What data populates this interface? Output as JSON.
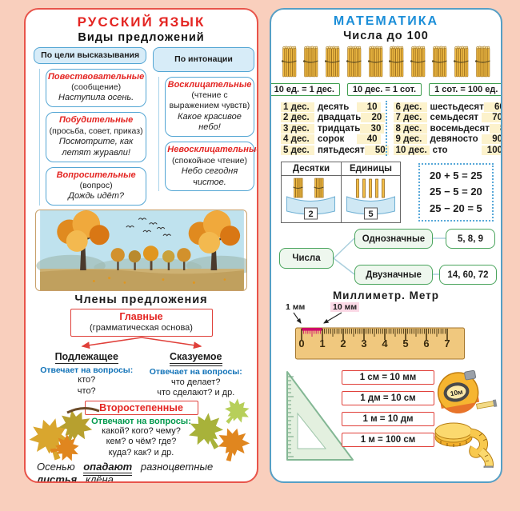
{
  "colors": {
    "background": "#f9cfbd",
    "left_border": "#e8544a",
    "right_border": "#569fc5",
    "accent_red": "#e42522",
    "accent_blue": "#1b8ed8",
    "lead_blue": "#1273b8",
    "lead_green": "#029a4d",
    "green_border": "#3f9e4f",
    "highlight_yellow": "#fcf2cc",
    "magenta": "#cf0a6a"
  },
  "left_panel": {
    "title": "РУССКИЙ  ЯЗЫК",
    "subtitle": "Виды  предложений",
    "by_purpose": {
      "header": "По  цели высказывания",
      "boxes": [
        {
          "name": "Повествовательные",
          "note": "(сообщение)",
          "example": "Наступила  осень."
        },
        {
          "name": "Побудительные",
          "note": "(просьба,  совет, приказ)",
          "example": "Посмотрите,  как летят  журавли!"
        },
        {
          "name": "Вопросительные",
          "note": "(вопрос)",
          "example": "Дождь  идёт?"
        }
      ]
    },
    "by_intonation": {
      "header": "По  интонации",
      "boxes": [
        {
          "name": "Восклицательные",
          "note": "(чтение с  выражением чувств)",
          "example": "Какое  красивое небо!"
        },
        {
          "name": "Невосклицательные",
          "note": "(спокойное  чтение)",
          "example": "Небо  сегодня чистое."
        }
      ]
    },
    "members_title": "Члены  предложения",
    "main_members": {
      "title": "Главные",
      "note": "(грамматическая  основа)"
    },
    "subject": {
      "title": "Подлежащее",
      "lead": "Отвечает  на  вопросы:",
      "questions": [
        "кто?",
        "что?"
      ]
    },
    "predicate": {
      "title": "Сказуемое",
      "lead": "Отвечает  на  вопросы:",
      "questions": [
        "что  делает?",
        "что  сделают?  и  др."
      ]
    },
    "secondary": {
      "title": "Второстепенные",
      "lead": "Отвечают  на  вопросы:",
      "questions": [
        "какой?  кого?  чему?",
        "кем?  о  чём?  где?",
        "куда?  как?  и  др."
      ]
    },
    "example": {
      "w1": "Осенью",
      "w2": "опадают",
      "w3": "разноцветные",
      "w4": "листья",
      "w5": "клёна."
    }
  },
  "right_panel": {
    "title": "МАТЕМАТИКА",
    "subtitle": "Числа  до  100",
    "bundles": [
      1,
      2,
      3,
      4,
      5,
      6,
      7,
      8,
      9,
      10
    ],
    "unit_equalities": [
      "10 ед. = 1 дес.",
      "10 дес. = 1 сот.",
      "1 сот. = 100 ед."
    ],
    "tens_table_left": [
      [
        "1 дес.",
        "десять",
        "10"
      ],
      [
        "2 дес.",
        "двадцать",
        "20"
      ],
      [
        "3 дес.",
        "тридцать",
        "30"
      ],
      [
        "4 дес.",
        "сорок",
        "40"
      ],
      [
        "5 дес.",
        "пятьдесят",
        "50"
      ]
    ],
    "tens_table_right": [
      [
        "6 дес.",
        "шестьдесят",
        "60"
      ],
      [
        "7 дес.",
        "семьдесят",
        "70"
      ],
      [
        "8 дес.",
        "восемьдесят",
        "80"
      ],
      [
        "9 дес.",
        "девяносто",
        "90"
      ],
      [
        "10 дес.",
        "сто",
        "100"
      ]
    ],
    "place_value": {
      "col1": "Десятки",
      "col2": "Единицы",
      "tens": "2",
      "units": "5"
    },
    "equations": [
      "20 + 5 = 25",
      "25 − 5 = 20",
      "25 − 20 = 5"
    ],
    "numbers_tree": {
      "root": "Числа",
      "branch1": "Однозначные",
      "values1": "5,  8,  9",
      "branch2": "Двузначные",
      "values2": "14,  60,  72"
    },
    "length_title": "Миллиметр.  Метр",
    "ruler": {
      "label_mm": "1 мм",
      "label_cm": "10 мм",
      "numbers": [
        "0",
        "1",
        "2",
        "3",
        "4",
        "5",
        "6",
        "7"
      ]
    },
    "conversions": [
      "1 см = 10 мм",
      "1 дм = 10 см",
      "1 м = 10 дм",
      "1 м = 100 см"
    ],
    "tape_label": "10м"
  }
}
